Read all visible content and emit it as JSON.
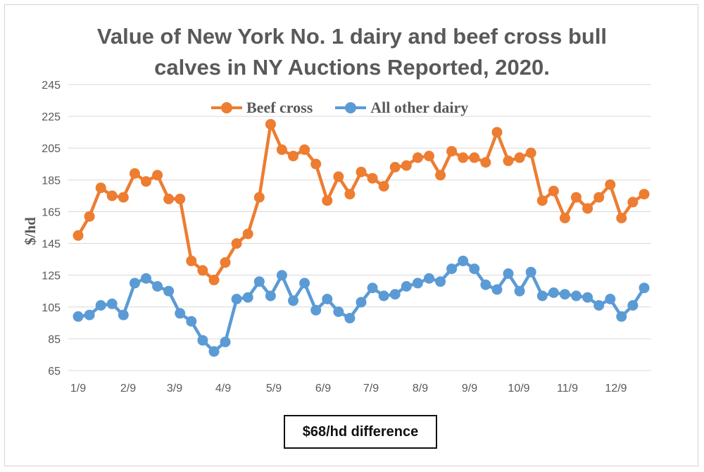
{
  "chart_data": {
    "type": "line",
    "title_lines": [
      "Value of New York No. 1 dairy and beef cross bull",
      "calves in NY Auctions Reported, 2020."
    ],
    "xlabel": "",
    "ylabel": "$/hd",
    "ylim": [
      65,
      245
    ],
    "y_ticks": [
      "65",
      "85",
      "105",
      "125",
      "145",
      "165",
      "185",
      "205",
      "225",
      "245"
    ],
    "x_tick_labels": [
      "1/9",
      "2/9",
      "3/9",
      "4/9",
      "5/9",
      "6/9",
      "7/9",
      "8/9",
      "9/9",
      "10/9",
      "11/9",
      "12/9"
    ],
    "grid": "horizontal",
    "legend_position": "top",
    "series": [
      {
        "name": "Beef cross",
        "color": "#ed7d31",
        "values": [
          150,
          162,
          180,
          175,
          174,
          189,
          184,
          188,
          173,
          173,
          134,
          128,
          122,
          133,
          145,
          151,
          174,
          220,
          204,
          200,
          204,
          195,
          172,
          187,
          176,
          190,
          186,
          181,
          193,
          194,
          199,
          200,
          188,
          203,
          199,
          199,
          196,
          215,
          197,
          199,
          202,
          172,
          178,
          161,
          174,
          167,
          174,
          182,
          161,
          171,
          176
        ]
      },
      {
        "name": "All other dairy",
        "color": "#5b9bd5",
        "values": [
          99,
          100,
          106,
          107,
          100,
          120,
          123,
          118,
          115,
          101,
          96,
          84,
          77,
          83,
          110,
          111,
          121,
          112,
          125,
          109,
          120,
          103,
          110,
          102,
          98,
          108,
          117,
          112,
          113,
          118,
          120,
          123,
          121,
          129,
          134,
          129,
          119,
          116,
          126,
          115,
          127,
          112,
          114,
          113,
          112,
          111,
          106,
          110,
          99,
          106,
          117
        ]
      }
    ],
    "annotation": "$68/hd difference"
  }
}
